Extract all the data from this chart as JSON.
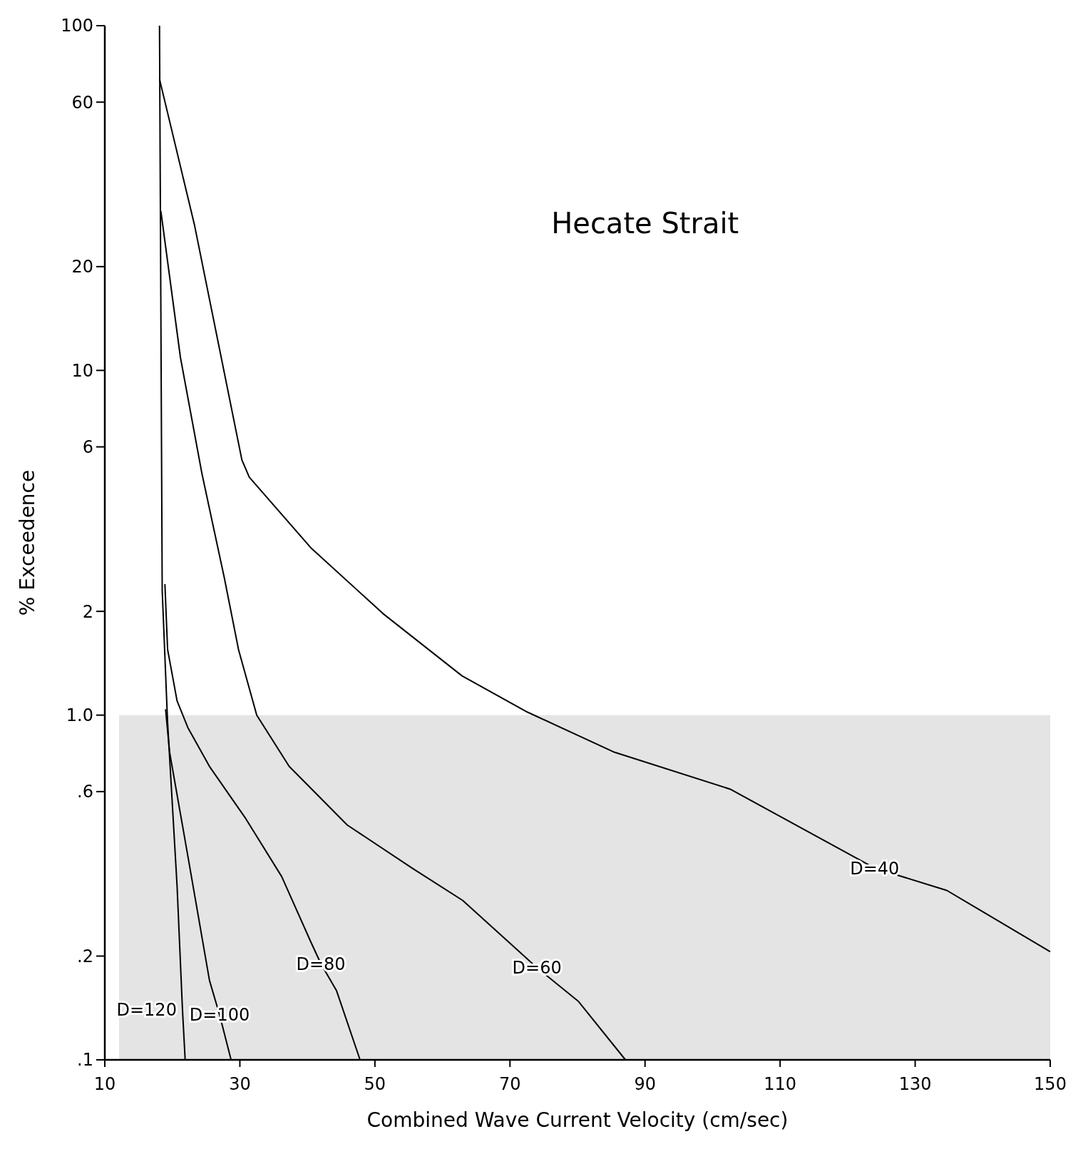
{
  "chart_data": {
    "type": "line",
    "title": "Hecate Strait",
    "xlabel": "Combined  Wave  Current Velocity (cm/sec)",
    "ylabel": "% Exceedence",
    "log": "y",
    "xlim": [
      10,
      150
    ],
    "xticks": [
      10,
      30,
      50,
      70,
      90,
      110,
      130,
      150
    ],
    "ylim": [
      0.1,
      100
    ],
    "yticks": [
      {
        "value": 100,
        "label": "100"
      },
      60,
      20,
      10,
      6,
      2,
      {
        "value": 1,
        "label": "1.0"
      },
      {
        "value": 0.6,
        "label": ".6"
      },
      {
        "value": 0.2,
        "label": ".2"
      },
      {
        "value": 0.1,
        "label": ".1"
      }
    ],
    "grid": false,
    "marker": "none",
    "line_style": "solid",
    "bands": [
      {
        "axis": "y",
        "from": 0.1,
        "to": 1,
        "color": "#e4e4e4"
      }
    ],
    "series": [
      {
        "color": "#000000",
        "x": [
          18.1,
          23.3,
          30.3,
          31.4,
          40.5,
          51.2,
          62.9,
          72.6,
          85.5,
          102.6,
          124,
          134.7,
          150
        ],
        "values": [
          70,
          26.3,
          5.5,
          4.9,
          3.06,
          1.97,
          1.3,
          1.02,
          0.78,
          0.61,
          0.36,
          0.31,
          0.206
        ]
      },
      {
        "color": "#000000",
        "x": [
          18.3,
          21.2,
          24.4,
          27.7,
          29.8,
          32.5,
          37.3,
          45.9,
          55.5,
          63,
          72.1,
          74,
          80.1,
          87.1
        ],
        "values": [
          29,
          10.9,
          5,
          2.5,
          1.55,
          1,
          0.71,
          0.48,
          0.36,
          0.29,
          0.2,
          0.185,
          0.148,
          0.1
        ]
      },
      {
        "color": "#000000",
        "x": [
          18.9,
          19.3,
          20.7,
          22.3,
          25.5,
          30.9,
          36.2,
          40.5,
          42,
          44.3,
          47.8
        ],
        "values": [
          2.4,
          1.55,
          1.1,
          0.92,
          0.71,
          0.5,
          0.34,
          0.22,
          0.19,
          0.159,
          0.1
        ]
      },
      {
        "color": "#000000",
        "x": [
          19,
          19.6,
          22.3,
          25.5,
          27,
          28.7
        ],
        "values": [
          1.04,
          0.78,
          0.39,
          0.17,
          0.135,
          0.1
        ]
      },
      {
        "color": "#000000",
        "x": [
          18.1,
          18.5,
          19.3,
          20.7,
          21.5,
          21.9
        ],
        "values": [
          100,
          2.3,
          0.95,
          0.32,
          0.14,
          0.1
        ]
      }
    ],
    "annotations": [
      {
        "text": "D=40",
        "x": 124,
        "y": 0.36
      },
      {
        "text": "D=60",
        "x": 74,
        "y": 0.185
      },
      {
        "text": "D=80",
        "x": 42,
        "y": 0.19
      },
      {
        "text": "D=100",
        "x": 27,
        "y": 0.135
      },
      {
        "text": "D=120",
        "x": 21.5,
        "y": 0.14
      }
    ]
  }
}
